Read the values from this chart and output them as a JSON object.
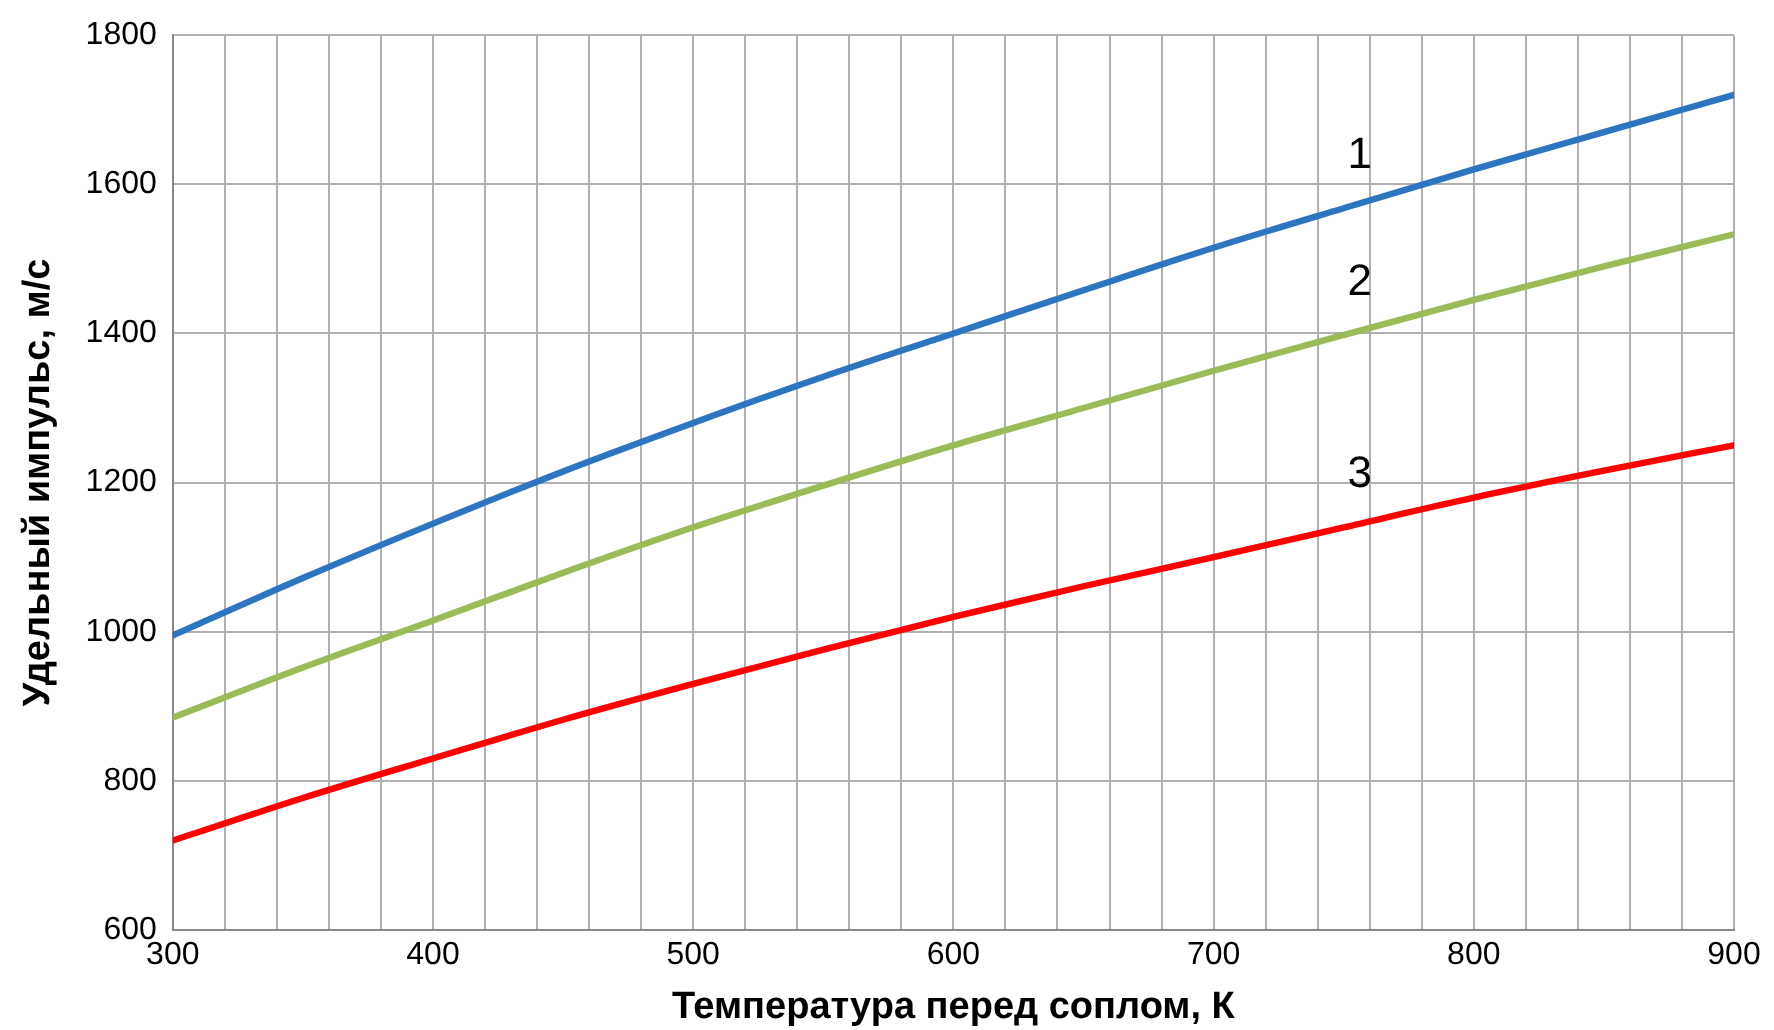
{
  "chart_data": {
    "type": "line",
    "xlabel": "Температура перед соплом, К",
    "ylabel": "Удельный импульс, м/с",
    "x": [
      300,
      350,
      400,
      450,
      500,
      550,
      600,
      650,
      700,
      750,
      800,
      850,
      900
    ],
    "series": [
      {
        "name": "1",
        "color": "#2e75c0",
        "values": [
          995,
          1072,
          1145,
          1215,
          1280,
          1342,
          1400,
          1458,
          1515,
          1568,
          1620,
          1670,
          1720
        ]
      },
      {
        "name": "2",
        "color": "#9bbb59",
        "values": [
          885,
          952,
          1015,
          1079,
          1140,
          1196,
          1250,
          1300,
          1350,
          1398,
          1445,
          1490,
          1533
        ]
      },
      {
        "name": "3",
        "color": "#ff0000",
        "values": [
          720,
          777,
          830,
          882,
          930,
          976,
          1020,
          1061,
          1100,
          1140,
          1180,
          1216,
          1250
        ]
      }
    ],
    "xlim": [
      300,
      900
    ],
    "xticks": [
      300,
      {
        "value": 320,
        "label": null
      },
      {
        "value": 340,
        "label": null
      },
      {
        "value": 360,
        "label": null
      },
      {
        "value": 380,
        "label": null
      },
      400,
      {
        "value": 420,
        "label": null
      },
      {
        "value": 440,
        "label": null
      },
      {
        "value": 460,
        "label": null
      },
      {
        "value": 480,
        "label": null
      },
      500,
      {
        "value": 520,
        "label": null
      },
      {
        "value": 540,
        "label": null
      },
      {
        "value": 560,
        "label": null
      },
      {
        "value": 580,
        "label": null
      },
      600,
      {
        "value": 620,
        "label": null
      },
      {
        "value": 640,
        "label": null
      },
      {
        "value": 660,
        "label": null
      },
      {
        "value": 680,
        "label": null
      },
      700,
      {
        "value": 720,
        "label": null
      },
      {
        "value": 740,
        "label": null
      },
      {
        "value": 760,
        "label": null
      },
      {
        "value": 780,
        "label": null
      },
      800,
      {
        "value": 820,
        "label": null
      },
      {
        "value": 840,
        "label": null
      },
      {
        "value": 860,
        "label": null
      },
      {
        "value": 880,
        "label": null
      },
      900
    ],
    "ylim": [
      600,
      1800
    ],
    "yticks": [
      600,
      800,
      1000,
      1200,
      1400,
      1600,
      1800
    ],
    "grid": true,
    "legend": false,
    "marker": "none",
    "line_style": "solid"
  }
}
